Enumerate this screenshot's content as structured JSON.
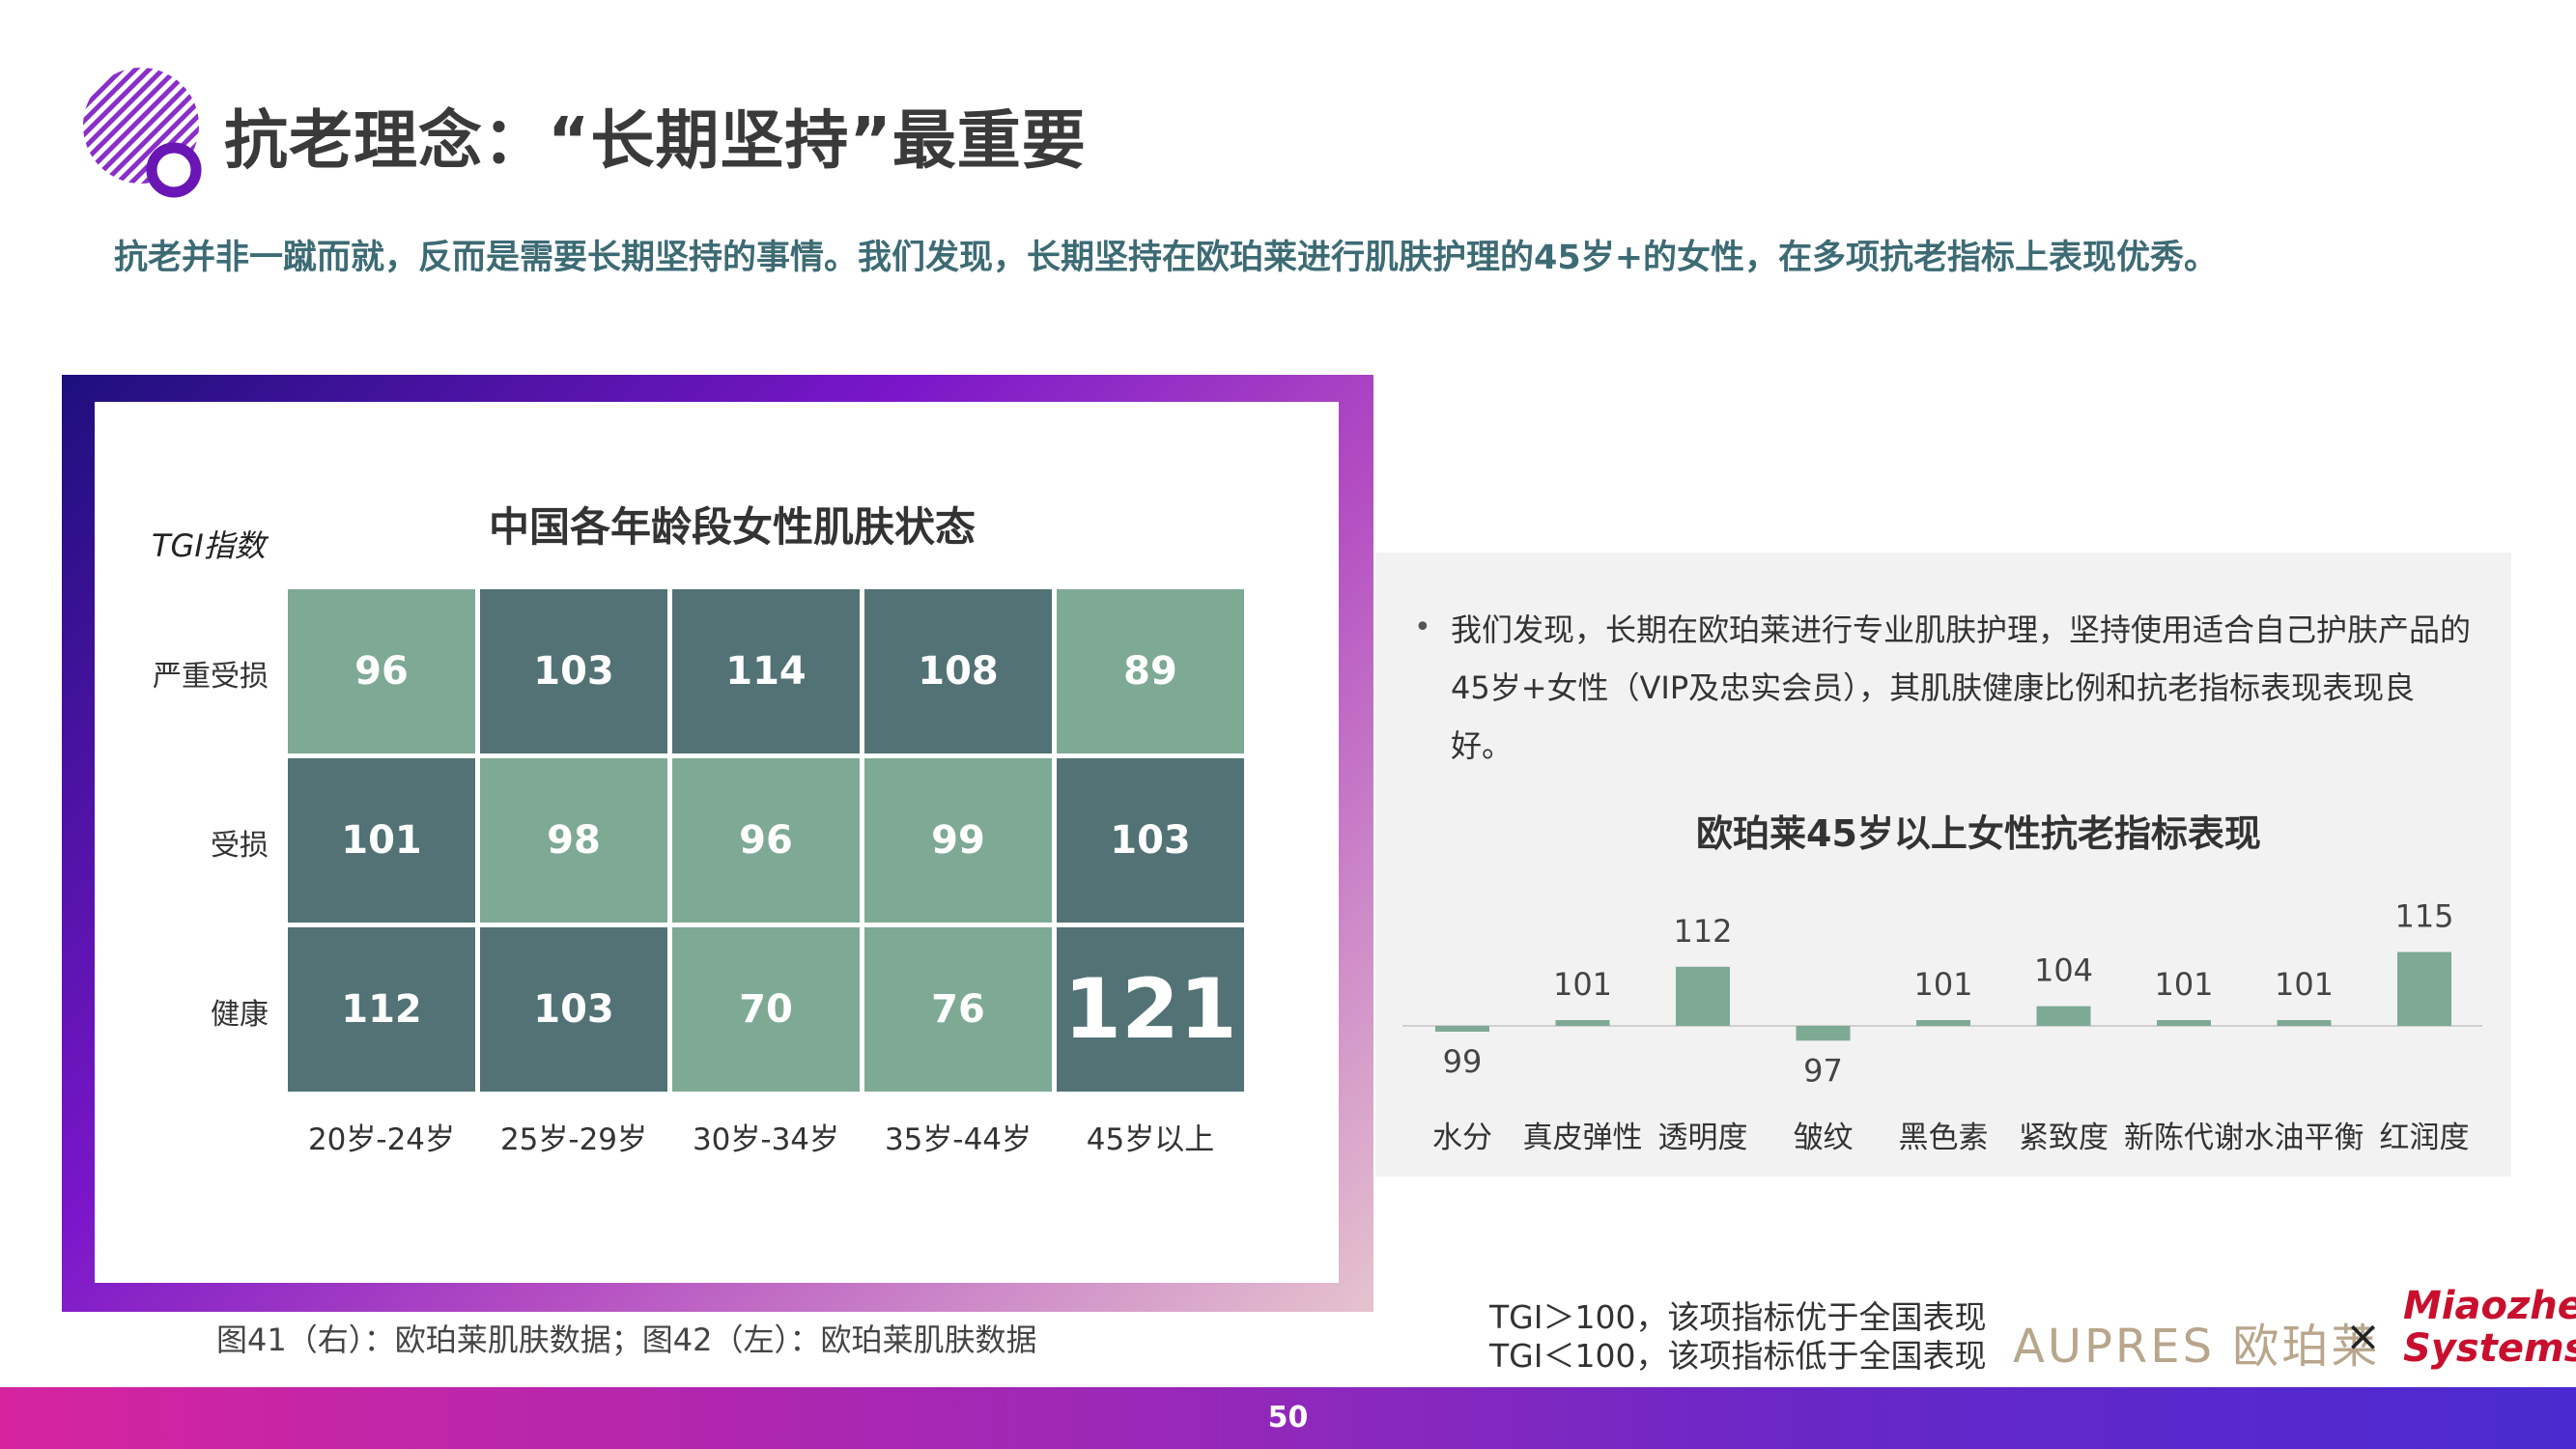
{
  "header": {
    "title": "抗老理念：“长期坚持”最重要",
    "subtitle": "抗老并非一蹴而就，反而是需要长期坚持的事情。我们发现，长期坚持在欧珀莱进行肌肤护理的45岁+的女性，在多项抗老指标上表现优秀。"
  },
  "colors": {
    "light_cell": "#7ea995",
    "dark_cell": "#527275",
    "bar": "#7ea995",
    "subtitle": "#3d6b74"
  },
  "chart_data": [
    {
      "type": "heatmap",
      "title": "中国各年龄段女性肌肤状态",
      "ylabel": "TGI指数",
      "rows": [
        "严重受损",
        "受损",
        "健康"
      ],
      "columns": [
        "20岁-24岁",
        "25岁-29岁",
        "30岁-34岁",
        "35岁-44岁",
        "45岁以上"
      ],
      "values": [
        [
          96,
          103,
          114,
          108,
          89
        ],
        [
          101,
          98,
          96,
          99,
          103
        ],
        [
          112,
          103,
          70,
          76,
          121
        ]
      ]
    },
    {
      "type": "bar",
      "title": "欧珀莱45岁以上女性抗老指标表现",
      "categories": [
        "水分",
        "真皮弹性",
        "透明度",
        "皱纹",
        "黑色素",
        "紧致度",
        "新陈代谢",
        "水油平衡",
        "红润度"
      ],
      "values": [
        99,
        101,
        112,
        97,
        101,
        104,
        101,
        101,
        115
      ],
      "baseline": 100
    }
  ],
  "right_panel": {
    "bullet": "我们发现，长期在欧珀莱进行专业肌肤护理，坚持使用适合自己护肤产品的45岁+女性（VIP及忠实会员），其肌肤健康比例和抗老指标表现表现良好。"
  },
  "captions": {
    "left": "图41（右）：欧珀莱肌肤数据；图42（左）：欧珀莱肌肤数据"
  },
  "notes": {
    "line1": "TGI＞100，该项指标优于全国表现",
    "line2": "TGI＜100，该项指标低于全国表现"
  },
  "logos": {
    "aupres": "AUPRES 欧珀莱",
    "times": "×",
    "miaozhen_line1": "Miaozhen",
    "miaozhen_line2": "Systems"
  },
  "footer": {
    "page_number": "50"
  }
}
